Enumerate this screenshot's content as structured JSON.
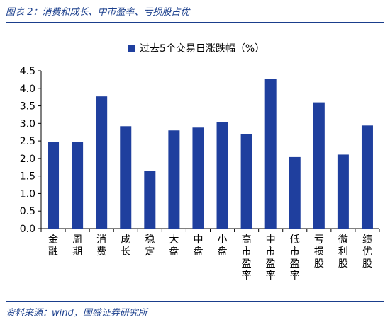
{
  "figure": {
    "title": "图表 2：消费和成长、中市盈率、亏损股占优",
    "source": "资料来源：wind，国盛证券研究所"
  },
  "chart_data": {
    "type": "bar",
    "categories": [
      "金融",
      "周期",
      "消费",
      "成长",
      "稳定",
      "大盘",
      "中盘",
      "小盘",
      "高市盈率",
      "中市盈率",
      "低市盈率",
      "亏损股",
      "微利股",
      "绩优股"
    ],
    "series": [
      {
        "name": "过去5个交易日涨跌幅（%）",
        "values": [
          2.47,
          2.48,
          3.77,
          2.92,
          1.64,
          2.8,
          2.88,
          3.04,
          2.69,
          4.26,
          2.04,
          3.6,
          2.11,
          2.94
        ]
      }
    ],
    "ylim": [
      0,
      4.5
    ],
    "yticks": [
      "0.0",
      "0.5",
      "1.0",
      "1.5",
      "2.0",
      "2.5",
      "3.0",
      "3.5",
      "4.0",
      "4.5"
    ],
    "legend_position": "top-center",
    "grid": false,
    "bar_color": "#1f3f9e",
    "xlabel": "",
    "ylabel": ""
  }
}
